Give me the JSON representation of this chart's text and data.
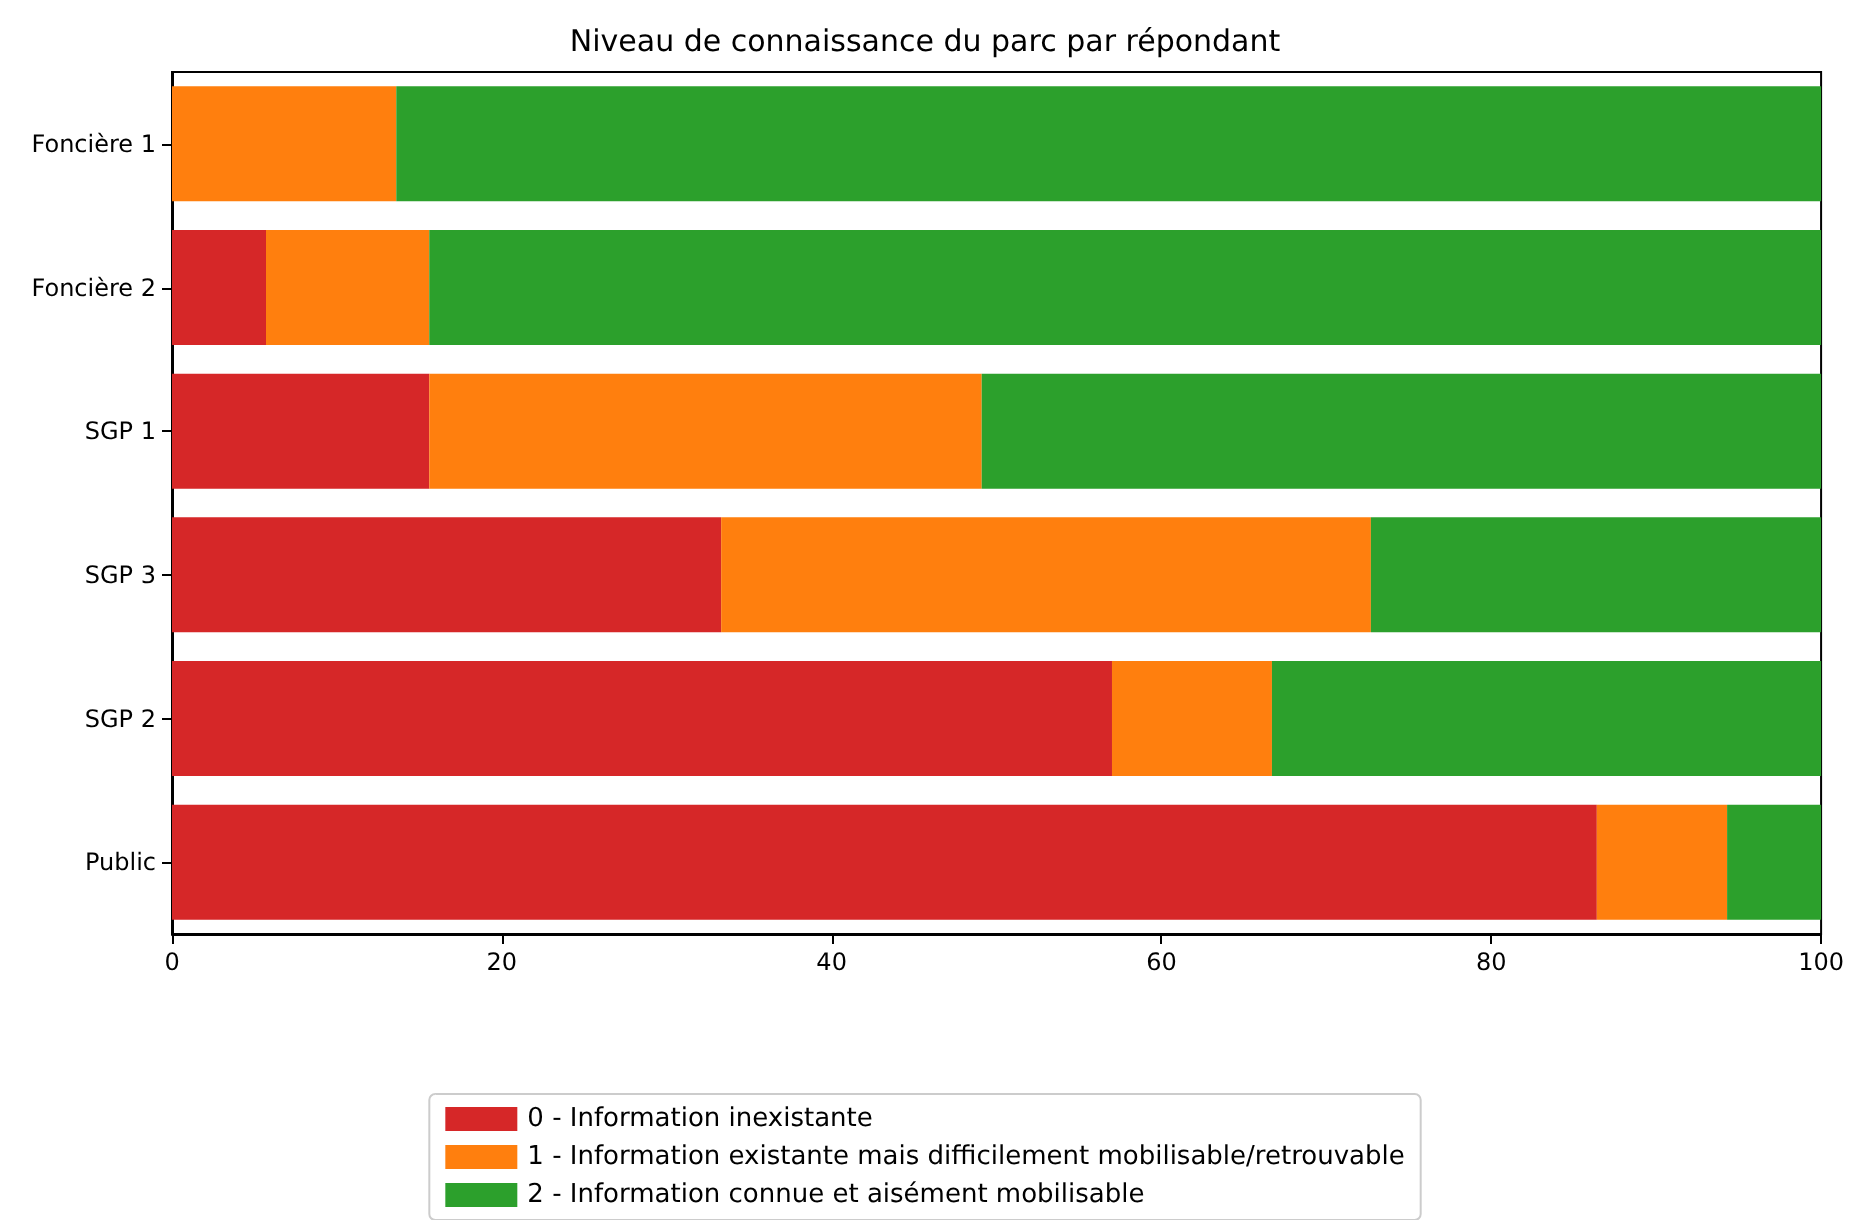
{
  "chart_data": {
    "type": "bar",
    "title": "Niveau de connaissance du parc par répondant",
    "orientation": "horizontal",
    "stacked": true,
    "categories": [
      "Foncière 1",
      "Foncière 2",
      "SGP 1",
      "SGP 3",
      "SGP 2",
      "Public"
    ],
    "series": [
      {
        "name": "0 - Information inexistante",
        "color": "#d62728",
        "values": [
          0,
          5.7,
          15.6,
          33.3,
          57.0,
          86.4
        ]
      },
      {
        "name": "1 - Information existante mais difficilement mobilisable/retrouvable",
        "color": "#ff7f0e",
        "values": [
          13.6,
          9.9,
          33.5,
          39.4,
          9.7,
          7.9
        ]
      },
      {
        "name": "2 - Information connue et aisément mobilisable",
        "color": "#2ca02c",
        "values": [
          86.4,
          84.4,
          50.9,
          27.3,
          33.3,
          5.7
        ]
      }
    ],
    "xlim": [
      0,
      100
    ],
    "xticks": [
      0,
      20,
      40,
      60,
      80,
      100
    ],
    "grid": false,
    "legend": "bottom"
  }
}
